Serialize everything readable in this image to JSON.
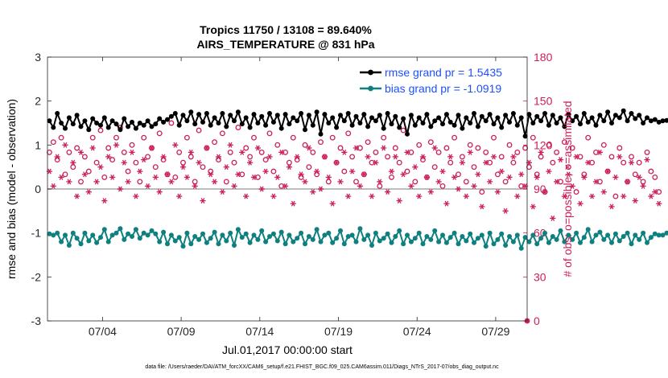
{
  "chart_data": {
    "type": "line",
    "title_line1": "Tropics 11750 / 13108 = 89.640%",
    "title_line2": "AIRS_TEMPERATURE @ 831 hPa",
    "xlabel": "Jul.01,2017 00:00:00 start",
    "ylabel_left": "rmse and bias (model - observation)",
    "ylabel_right": "# of obs: o=possible; ×=assimilated",
    "ylim_left": [
      -3,
      3
    ],
    "ylim_right": [
      0,
      180
    ],
    "xlim": [
      1.5,
      32.0
    ],
    "x_ticks": [
      {
        "value": 5,
        "label": "07/04"
      },
      {
        "value": 10,
        "label": "07/09"
      },
      {
        "value": 15,
        "label": "07/14"
      },
      {
        "value": 20,
        "label": "07/19"
      },
      {
        "value": 25,
        "label": "07/24"
      },
      {
        "value": 30,
        "label": "07/29"
      }
    ],
    "y_ticks_left": [
      {
        "value": 3,
        "label": "3"
      },
      {
        "value": 2,
        "label": "2"
      },
      {
        "value": 1,
        "label": "1"
      },
      {
        "value": 0,
        "label": "0"
      },
      {
        "value": -1,
        "label": "-1"
      },
      {
        "value": -2,
        "label": "-2"
      },
      {
        "value": -3,
        "label": "-3"
      }
    ],
    "y_ticks_right": [
      {
        "value": 180,
        "label": "180"
      },
      {
        "value": 150,
        "label": "150"
      },
      {
        "value": 120,
        "label": "120"
      },
      {
        "value": 90,
        "label": "90"
      },
      {
        "value": 60,
        "label": "60"
      },
      {
        "value": 30,
        "label": "30"
      },
      {
        "value": 0,
        "label": "0"
      }
    ],
    "zero_line": 0,
    "legend": {
      "position": "top-right",
      "entries": [
        "rmse grand pr = 1.5435",
        "bias grand pr = -1.0919"
      ]
    },
    "x_start": 1.625,
    "x_step": 0.25,
    "series": [
      {
        "name": "rmse",
        "axis": "left",
        "color": "#000000",
        "values": [
          1.55,
          1.4,
          1.72,
          1.5,
          1.38,
          1.62,
          1.48,
          1.68,
          1.42,
          1.55,
          1.35,
          1.6,
          1.5,
          1.45,
          1.62,
          1.4,
          1.55,
          1.48,
          1.35,
          1.6,
          1.42,
          1.52,
          1.38,
          1.5,
          1.45,
          1.55,
          1.42,
          1.48,
          1.6,
          1.52,
          1.58,
          1.65,
          1.72,
          1.45,
          1.68,
          1.55,
          1.75,
          1.48,
          1.7,
          1.52,
          1.72,
          1.45,
          1.62,
          1.5,
          1.72,
          1.42,
          1.68,
          1.55,
          1.75,
          1.48,
          1.62,
          1.4,
          1.7,
          1.5,
          1.65,
          1.45,
          1.72,
          1.52,
          1.68,
          1.38,
          1.7,
          1.48,
          1.62,
          1.55,
          1.72,
          1.35,
          1.68,
          1.45,
          1.75,
          1.25,
          1.7,
          1.5,
          1.62,
          1.4,
          1.68,
          1.55,
          1.72,
          1.45,
          1.65,
          1.5,
          1.7,
          1.42,
          1.62,
          1.55,
          1.68,
          1.38,
          1.72,
          1.48,
          1.65,
          1.4,
          1.6,
          1.25,
          1.68,
          1.45,
          1.62,
          1.5,
          1.7,
          1.42,
          1.55,
          1.62,
          1.48,
          1.7,
          1.52,
          1.45,
          1.68,
          1.38,
          1.62,
          1.5,
          1.72,
          1.42,
          1.65,
          1.55,
          1.7,
          1.48,
          1.62,
          1.4,
          1.68,
          1.52,
          1.72,
          1.45,
          1.62,
          1.2,
          1.7,
          1.5,
          1.65,
          1.55,
          1.72,
          1.45,
          1.68,
          1.5,
          1.62,
          1.42,
          1.7,
          1.55,
          1.65,
          1.48,
          1.72,
          1.52,
          1.62,
          1.45,
          1.68,
          1.55,
          1.75,
          1.5,
          1.68,
          1.62,
          1.78,
          1.55,
          1.72,
          1.6,
          1.68,
          1.5,
          1.62,
          1.55,
          1.58,
          1.52,
          1.55,
          1.56
        ]
      },
      {
        "name": "bias",
        "axis": "left",
        "color": "#0f8080",
        "values": [
          -1.02,
          -1.05,
          -1.0,
          -1.2,
          -1.05,
          -1.28,
          -1.0,
          -1.12,
          -1.25,
          -1.0,
          -1.18,
          -1.05,
          -1.22,
          -1.1,
          -0.92,
          -1.2,
          -1.05,
          -1.0,
          -0.9,
          -1.15,
          -1.02,
          -1.08,
          -0.92,
          -1.12,
          -1.0,
          -1.05,
          -0.95,
          -1.02,
          -1.2,
          -0.98,
          -1.25,
          -1.05,
          -1.18,
          -1.1,
          -1.3,
          -1.0,
          -1.25,
          -1.08,
          -1.15,
          -1.02,
          -1.22,
          -1.12,
          -0.98,
          -1.25,
          -1.05,
          -1.18,
          -1.0,
          -1.28,
          -0.92,
          -1.1,
          -1.02,
          -1.22,
          -1.05,
          -1.15,
          -0.95,
          -1.2,
          -1.08,
          -1.02,
          -1.18,
          -0.98,
          -1.25,
          -1.05,
          -1.2,
          -1.12,
          -1.0,
          -1.25,
          -1.08,
          -1.15,
          -0.92,
          -1.2,
          -1.05,
          -1.0,
          -1.22,
          -1.12,
          -0.95,
          -1.25,
          -1.08,
          -1.05,
          -1.2,
          -0.9,
          -1.15,
          -1.05,
          -1.28,
          -1.0,
          -1.18,
          -1.12,
          -1.02,
          -1.22,
          -1.08,
          -0.95,
          -1.25,
          -1.05,
          -1.2,
          -1.12,
          -1.0,
          -1.25,
          -1.08,
          -1.15,
          -0.95,
          -1.2,
          -1.05,
          -1.22,
          -1.1,
          -1.0,
          -1.25,
          -1.08,
          -1.18,
          -1.02,
          -1.22,
          -1.12,
          -1.05,
          -1.3,
          -1.0,
          -1.25,
          -1.15,
          -1.02,
          -1.28,
          -1.08,
          -1.2,
          -1.05,
          -1.35,
          -1.1,
          -1.2,
          -1.05,
          -1.25,
          -1.12,
          -1.0,
          -1.22,
          -1.08,
          -1.15,
          -0.95,
          -1.2,
          -1.05,
          -1.15,
          -1.0,
          -1.22,
          -1.1,
          -0.92,
          -1.2,
          -1.05,
          -0.98,
          -1.15,
          -1.05,
          -1.22,
          -1.02,
          -1.18,
          -1.08,
          -1.0,
          -1.25,
          -1.05,
          -1.15,
          -1.0,
          -1.22,
          -1.1,
          -1.02,
          -1.05,
          -1.05,
          -1.0
        ]
      },
      {
        "name": "obs possible",
        "axis": "right",
        "color": "#cc1f5a",
        "marker": "circle",
        "values": [
          115,
          122,
          110,
          125,
          100,
          115,
          105,
          118,
          95,
          112,
          102,
          125,
          108,
          130,
          98,
          118,
          110,
          125,
          132,
          115,
          102,
          120,
          108,
          95,
          125,
          112,
          118,
          105,
          128,
          110,
          100,
          135,
          98,
          115,
          108,
          125,
          112,
          95,
          130,
          105,
          118,
          102,
          122,
          110,
          128,
          95,
          115,
          108,
          132,
          100,
          118,
          112,
          125,
          98,
          115,
          110,
          128,
          102,
          120,
          92,
          115,
          108,
          125,
          110,
          98,
          120,
          105,
          115,
          100,
          122,
          112,
          95,
          125,
          108,
          118,
          102,
          128,
          112,
          95,
          118,
          100,
          122,
          108,
          115,
          92,
          125,
          112,
          98,
          118,
          108,
          130,
          102,
          115,
          95,
          120,
          110,
          98,
          122,
          105,
          115,
          92,
          118,
          108,
          125,
          100,
          112,
          95,
          120,
          105,
          118,
          88,
          115,
          108,
          125,
          100,
          112,
          95,
          120,
          108,
          115,
          92,
          118,
          105,
          125,
          100,
          112,
          88,
          120,
          108,
          115,
          95,
          122,
          105,
          118,
          88,
          112,
          100,
          125,
          108,
          115,
          95,
          120,
          102,
          112,
          85,
          118,
          108,
          95,
          112,
          100,
          108,
          95,
          115,
          102,
          98,
          88
        ]
      },
      {
        "name": "obs assimilated",
        "axis": "right",
        "color": "#cc1f5a",
        "marker": "asterisk",
        "values": [
          102,
          92,
          112,
          98,
          120,
          95,
          108,
          85,
          115,
          100,
          88,
          118,
          95,
          105,
          82,
          112,
          98,
          120,
          90,
          108,
          95,
          115,
          85,
          102,
          110,
          92,
          118,
          98,
          88,
          112,
          100,
          95,
          120,
          85,
          105,
          98,
          115,
          92,
          108,
          82,
          118,
          100,
          95,
          112,
          88,
          105,
          120,
          92,
          100,
          115,
          85,
          108,
          98,
          118,
          90,
          102,
          112,
          85,
          98,
          115,
          92,
          105,
          80,
          112,
          100,
          95,
          118,
          88,
          102,
          90,
          112,
          98,
          80,
          108,
          95,
          115,
          85,
          102,
          118,
          92,
          100,
          112,
          85,
          108,
          95,
          118,
          88,
          102,
          112,
          82,
          100,
          115,
          92,
          105,
          85,
          112,
          98,
          88,
          118,
          95,
          102,
          80,
          112,
          98,
          90,
          108,
          85,
          115,
          92,
          100,
          78,
          108,
          95,
          112,
          88,
          102,
          75,
          98,
          112,
          85,
          100,
          92,
          108,
          78,
          98,
          115,
          88,
          102,
          70,
          95,
          110,
          85,
          100,
          92,
          112,
          80,
          98,
          108,
          85,
          95,
          115,
          88,
          102,
          78,
          98,
          112,
          85,
          95,
          108,
          82,
          98,
          92,
          110,
          85,
          88,
          80
        ]
      }
    ],
    "footer": "data file: /Users/raeder/DAI/ATM_forcXX/CAM6_setup/f.e21.FHIST_BGC.f09_025.CAM6assim.011/Diags_NTrS_2017-07/obs_diag_output.nc"
  }
}
